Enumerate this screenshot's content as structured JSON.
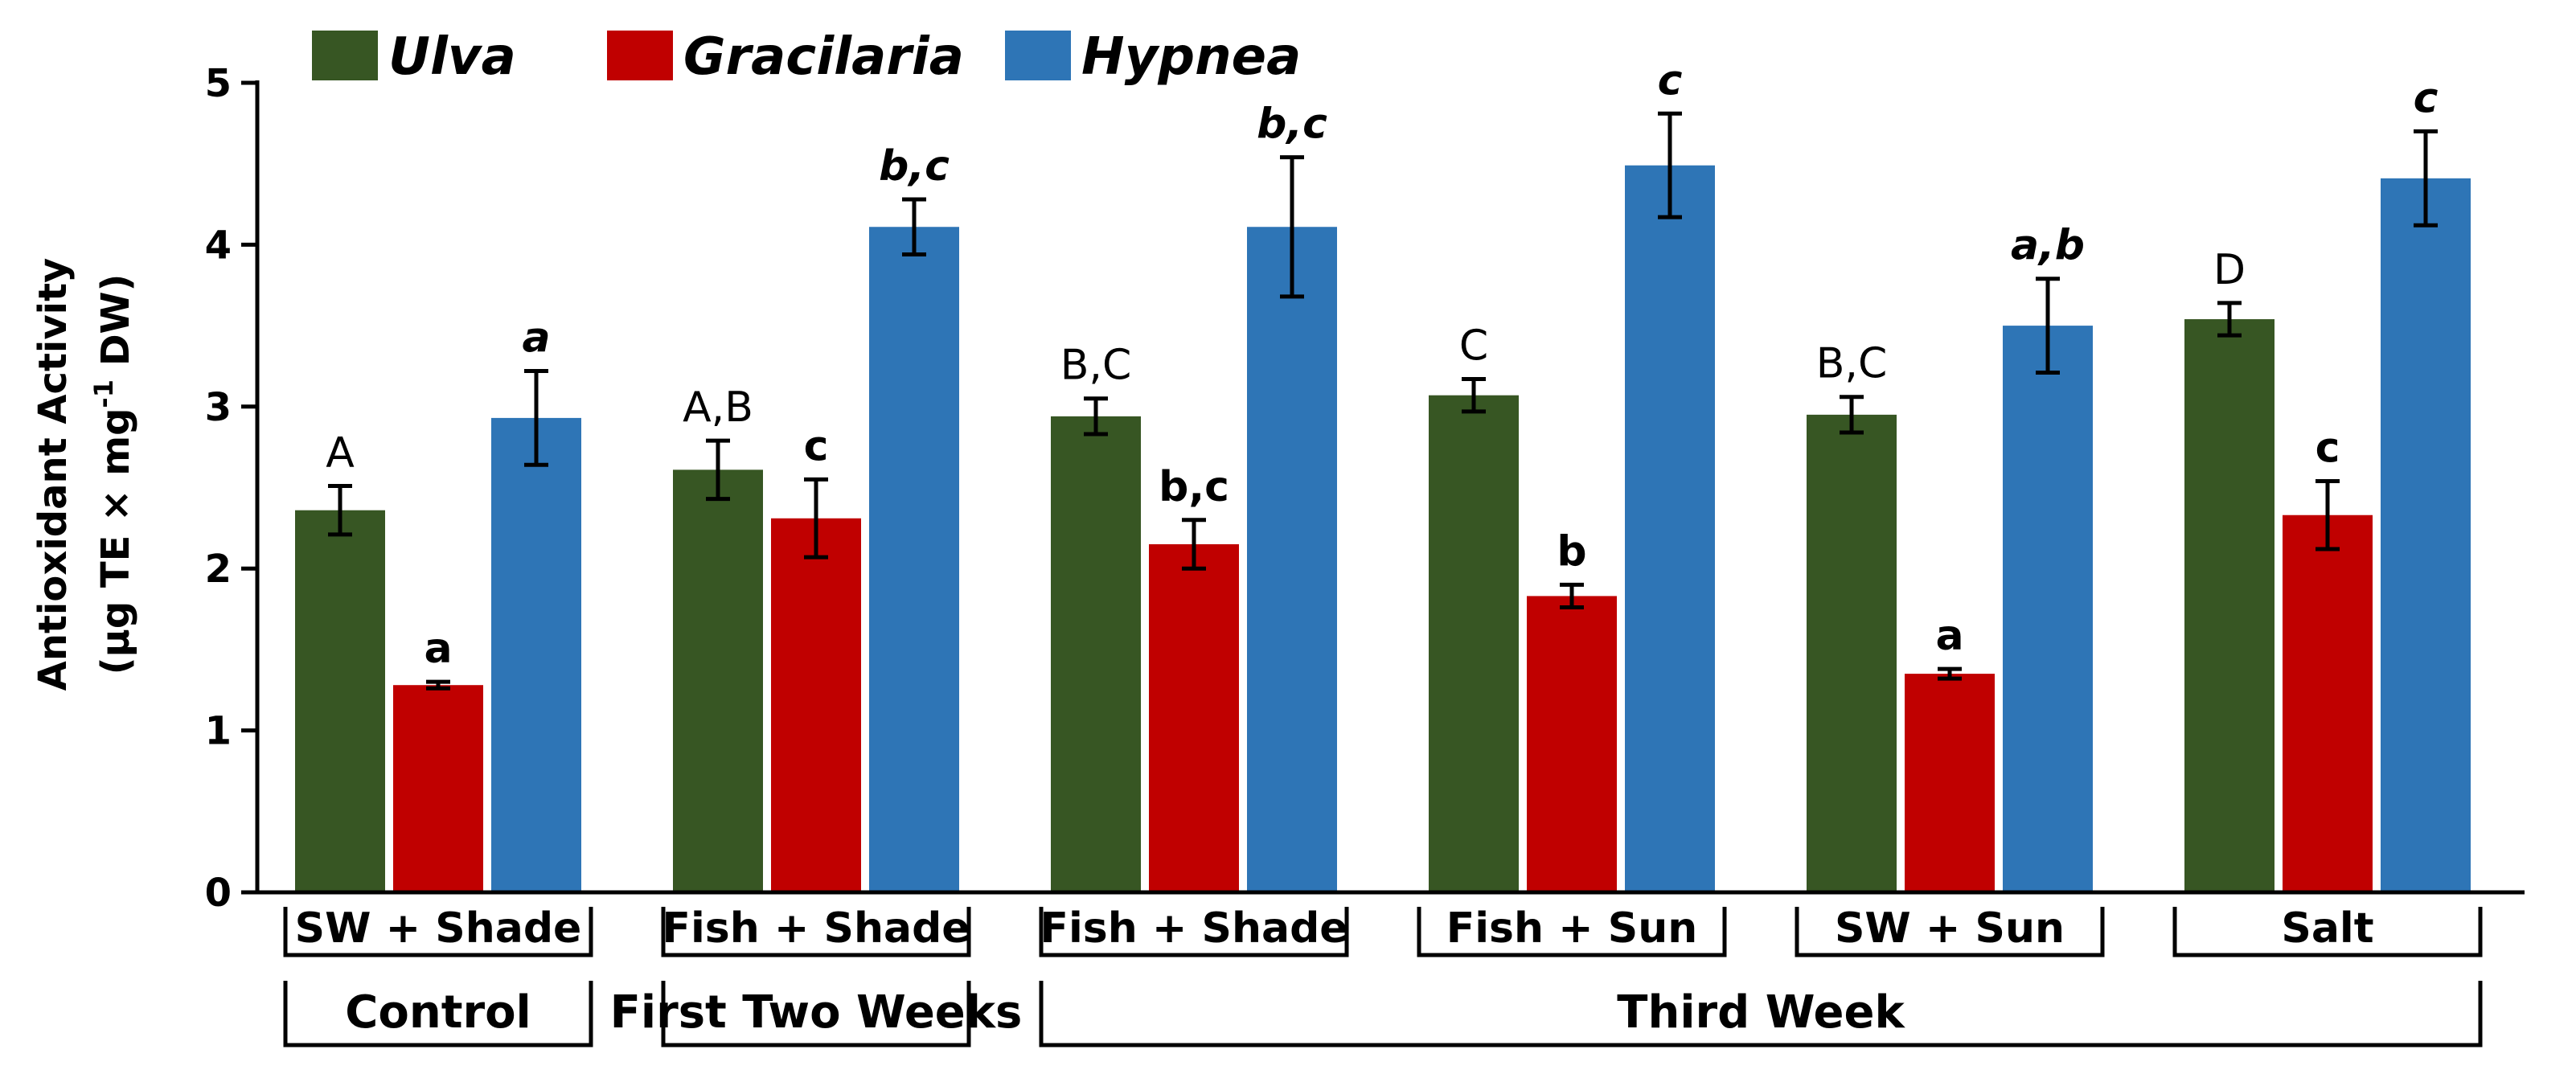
{
  "chart_data": {
    "type": "bar",
    "title": "",
    "ylabel_line1": "Antioxidant Activity",
    "ylabel_line2_prefix": "(µg TE × mg",
    "ylabel_line2_sup": "-1",
    "ylabel_line2_suffix": " DW)",
    "ylim": [
      0,
      5
    ],
    "yticks": [
      "0",
      "1",
      "2",
      "3",
      "4",
      "5"
    ],
    "categories": [
      "SW + Shade",
      "Fish + Shade",
      "Fish + Shade",
      "Fish + Sun",
      "SW + Sun",
      "Salt"
    ],
    "groups": [
      {
        "label": "Control",
        "span": [
          0,
          0
        ]
      },
      {
        "label": "First Two Weeks",
        "span": [
          1,
          1
        ]
      },
      {
        "label": "Third Week",
        "span": [
          2,
          5
        ]
      }
    ],
    "legend_position": "top-left",
    "series": [
      {
        "name": "Ulva",
        "color": "#375623",
        "values": [
          2.36,
          2.61,
          2.94,
          3.07,
          2.95,
          3.54
        ],
        "errors": [
          0.15,
          0.18,
          0.11,
          0.1,
          0.11,
          0.1
        ],
        "labels": [
          "A",
          "A,B",
          "B,C",
          "C",
          "B,C",
          "D"
        ],
        "label_style": "upright"
      },
      {
        "name": "Gracilaria",
        "color": "#C00000",
        "values": [
          1.28,
          2.31,
          2.15,
          1.83,
          1.35,
          2.33
        ],
        "errors": [
          0.02,
          0.24,
          0.15,
          0.07,
          0.03,
          0.21
        ],
        "labels": [
          "a",
          "c",
          "b,c",
          "b",
          "a",
          "c"
        ],
        "label_style": "bold"
      },
      {
        "name": "Hypnea",
        "color": "#2E75B6",
        "values": [
          2.93,
          4.11,
          4.11,
          4.49,
          3.5,
          4.41
        ],
        "errors": [
          0.29,
          0.17,
          0.43,
          0.32,
          0.29,
          0.29
        ],
        "labels": [
          "a",
          "b,c",
          "b,c",
          "c",
          "a,b",
          "c"
        ],
        "label_style": "italic"
      }
    ]
  }
}
